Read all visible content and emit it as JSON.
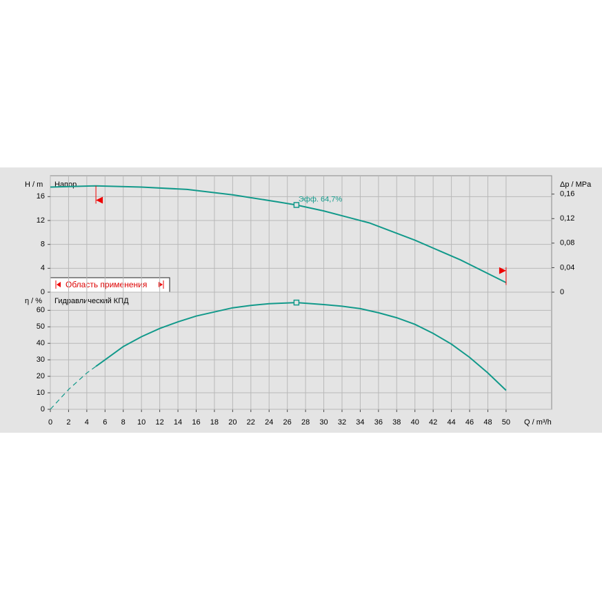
{
  "chart_data": [
    {
      "type": "line",
      "label": "Напор",
      "ylabel": "H / m",
      "y2label": "Δp / MPa",
      "xlim": [
        0,
        55
      ],
      "ylim": [
        0,
        19.5
      ],
      "yticks": [
        0,
        4,
        8,
        12,
        16
      ],
      "y2lim": [
        0,
        0.19
      ],
      "y2ticks": [
        0,
        {
          "value": 0.04,
          "label": "0,04"
        },
        {
          "value": 0.08,
          "label": "0,08"
        },
        {
          "value": 0.12,
          "label": "0,12"
        },
        {
          "value": 0.16,
          "label": "0,16"
        }
      ],
      "grid": true,
      "series": [
        {
          "color": "#11998a",
          "x": [
            0,
            5,
            10,
            15,
            20,
            25,
            27,
            30,
            35,
            40,
            45,
            50
          ],
          "values": [
            17.6,
            17.8,
            17.6,
            17.2,
            16.3,
            15.1,
            14.6,
            13.6,
            11.6,
            8.7,
            5.4,
            1.6
          ]
        }
      ],
      "annotation": {
        "text": "Эфф.  64,7%",
        "x": 27,
        "y": 14.6
      },
      "operating_range": {
        "text": "Область применения",
        "x": [
          5,
          50
        ],
        "y": [
          15.4,
          3.6
        ]
      }
    },
    {
      "type": "line",
      "label": "Гидравлический КПД",
      "ylabel": "η / %",
      "xlabel": "Q / m³/h",
      "xlim": [
        0,
        55
      ],
      "xticks": [
        0,
        2,
        4,
        6,
        8,
        10,
        12,
        14,
        16,
        18,
        20,
        22,
        24,
        26,
        28,
        30,
        32,
        34,
        36,
        38,
        40,
        42,
        44,
        46,
        48,
        50
      ],
      "ylim": [
        0,
        71
      ],
      "yticks": [
        0,
        10,
        20,
        30,
        40,
        50,
        60
      ],
      "grid": true,
      "series": [
        {
          "color": "#11998a",
          "dashed": true,
          "x": [
            0,
            2,
            4,
            5
          ],
          "values": [
            0,
            12,
            22,
            26
          ]
        },
        {
          "color": "#11998a",
          "x": [
            5,
            6,
            8,
            10,
            12,
            14,
            16,
            18,
            20,
            22,
            24,
            27,
            30,
            32,
            34,
            36,
            38,
            40,
            42,
            44,
            46,
            48,
            50
          ],
          "values": [
            26,
            30,
            38,
            44,
            49,
            53,
            56.5,
            59,
            61.5,
            63,
            64,
            64.7,
            63.5,
            62.5,
            61,
            58.5,
            55.5,
            51.5,
            46,
            39.5,
            31.5,
            22,
            11.5
          ]
        }
      ],
      "marker": {
        "x": 27,
        "y": 64.7
      }
    }
  ]
}
